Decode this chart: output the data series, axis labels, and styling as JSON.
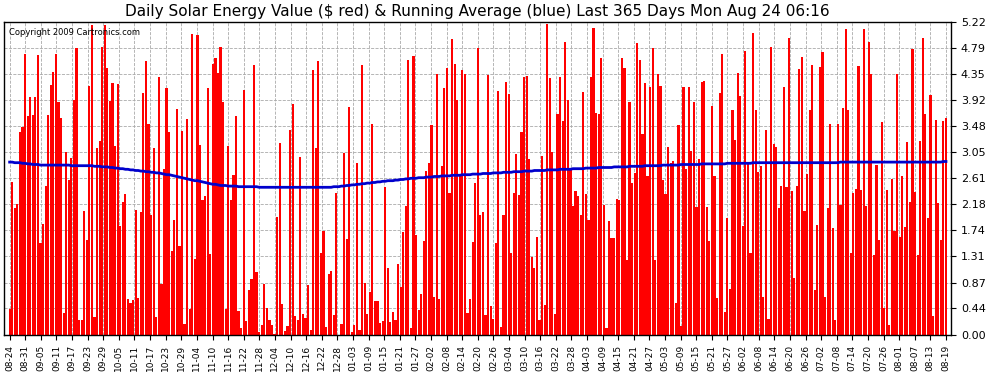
{
  "title": "Daily Solar Energy Value ($ red) & Running Average (blue) Last 365 Days Mon Aug 24 06:16",
  "copyright_text": "Copyright 2009 Cartronics.com",
  "yticks": [
    0.0,
    0.44,
    0.87,
    1.31,
    1.74,
    2.18,
    2.61,
    3.05,
    3.48,
    3.92,
    4.35,
    4.79,
    5.22
  ],
  "ymax": 5.22,
  "ymin": 0.0,
  "bar_color": "#ff0000",
  "avg_color": "#0000cc",
  "bg_color": "#ffffff",
  "grid_color": "#aaaaaa",
  "plot_bg": "#ffffff",
  "title_fontsize": 11,
  "xtick_labels": [
    "08-24",
    "08-31",
    "09-05",
    "09-11",
    "09-17",
    "09-23",
    "09-29",
    "10-05",
    "10-11",
    "10-17",
    "10-23",
    "10-29",
    "11-04",
    "11-10",
    "11-16",
    "11-22",
    "11-28",
    "12-04",
    "12-10",
    "12-16",
    "12-22",
    "12-28",
    "01-03",
    "01-09",
    "01-15",
    "01-21",
    "01-27",
    "02-02",
    "02-08",
    "02-14",
    "02-20",
    "02-26",
    "03-04",
    "03-10",
    "03-16",
    "03-22",
    "03-28",
    "04-03",
    "04-09",
    "04-15",
    "04-21",
    "04-27",
    "05-03",
    "05-09",
    "05-15",
    "05-21",
    "05-27",
    "06-02",
    "06-08",
    "06-14",
    "06-20",
    "06-26",
    "07-02",
    "07-08",
    "07-14",
    "07-20",
    "07-26",
    "08-01",
    "08-07",
    "08-13",
    "08-19"
  ],
  "running_avg_values": [
    2.88,
    2.88,
    2.87,
    2.87,
    2.87,
    2.86,
    2.86,
    2.85,
    2.85,
    2.84,
    2.84,
    2.84,
    2.83,
    2.83,
    2.83,
    2.83,
    2.83,
    2.83,
    2.83,
    2.83,
    2.83,
    2.83,
    2.83,
    2.83,
    2.82,
    2.82,
    2.82,
    2.82,
    2.82,
    2.82,
    2.82,
    2.82,
    2.82,
    2.81,
    2.81,
    2.81,
    2.8,
    2.8,
    2.8,
    2.79,
    2.79,
    2.78,
    2.78,
    2.77,
    2.77,
    2.76,
    2.76,
    2.75,
    2.75,
    2.74,
    2.74,
    2.73,
    2.73,
    2.72,
    2.72,
    2.71,
    2.71,
    2.7,
    2.7,
    2.69,
    2.68,
    2.67,
    2.67,
    2.66,
    2.65,
    2.64,
    2.63,
    2.62,
    2.61,
    2.6,
    2.59,
    2.58,
    2.57,
    2.57,
    2.56,
    2.55,
    2.54,
    2.53,
    2.52,
    2.51,
    2.51,
    2.5,
    2.49,
    2.49,
    2.49,
    2.48,
    2.48,
    2.48,
    2.48,
    2.47,
    2.47,
    2.47,
    2.47,
    2.47,
    2.47,
    2.47,
    2.47,
    2.46,
    2.46,
    2.46,
    2.46,
    2.46,
    2.46,
    2.46,
    2.46,
    2.46,
    2.46,
    2.46,
    2.46,
    2.46,
    2.46,
    2.46,
    2.46,
    2.46,
    2.46,
    2.46,
    2.46,
    2.46,
    2.46,
    2.46,
    2.46,
    2.46,
    2.46,
    2.46,
    2.46,
    2.46,
    2.47,
    2.47,
    2.47,
    2.48,
    2.48,
    2.49,
    2.49,
    2.5,
    2.5,
    2.51,
    2.51,
    2.52,
    2.52,
    2.53,
    2.53,
    2.54,
    2.54,
    2.55,
    2.55,
    2.56,
    2.56,
    2.57,
    2.57,
    2.57,
    2.58,
    2.58,
    2.59,
    2.59,
    2.6,
    2.6,
    2.61,
    2.61,
    2.61,
    2.62,
    2.62,
    2.62,
    2.63,
    2.63,
    2.63,
    2.64,
    2.64,
    2.64,
    2.65,
    2.65,
    2.65,
    2.65,
    2.66,
    2.66,
    2.66,
    2.66,
    2.67,
    2.67,
    2.67,
    2.67,
    2.68,
    2.68,
    2.68,
    2.68,
    2.69,
    2.69,
    2.69,
    2.69,
    2.7,
    2.7,
    2.7,
    2.7,
    2.71,
    2.71,
    2.71,
    2.71,
    2.72,
    2.72,
    2.72,
    2.72,
    2.73,
    2.73,
    2.73,
    2.73,
    2.74,
    2.74,
    2.74,
    2.74,
    2.74,
    2.75,
    2.75,
    2.75,
    2.75,
    2.75,
    2.76,
    2.76,
    2.76,
    2.76,
    2.76,
    2.77,
    2.77,
    2.77,
    2.77,
    2.77,
    2.78,
    2.78,
    2.78,
    2.78,
    2.78,
    2.79,
    2.79,
    2.79,
    2.79,
    2.79,
    2.79,
    2.8,
    2.8,
    2.8,
    2.8,
    2.8,
    2.8,
    2.81,
    2.81,
    2.81,
    2.81,
    2.81,
    2.81,
    2.82,
    2.82,
    2.82,
    2.82,
    2.82,
    2.82,
    2.82,
    2.83,
    2.83,
    2.83,
    2.83,
    2.83,
    2.83,
    2.83,
    2.84,
    2.84,
    2.84,
    2.84,
    2.84,
    2.84,
    2.84,
    2.84,
    2.85,
    2.85,
    2.85,
    2.85,
    2.85,
    2.85,
    2.85,
    2.85,
    2.85,
    2.85,
    2.86,
    2.86,
    2.86,
    2.86,
    2.86,
    2.86,
    2.86,
    2.86,
    2.86,
    2.86,
    2.87,
    2.87,
    2.87,
    2.87,
    2.87,
    2.87,
    2.87,
    2.87,
    2.87,
    2.87,
    2.87,
    2.87,
    2.87,
    2.87,
    2.87,
    2.87,
    2.87,
    2.87,
    2.87,
    2.87,
    2.87,
    2.87,
    2.87,
    2.87,
    2.87,
    2.87,
    2.87,
    2.87,
    2.87,
    2.87,
    2.87,
    2.87,
    2.87,
    2.87,
    2.88,
    2.88,
    2.88,
    2.88,
    2.88,
    2.88,
    2.88,
    2.88,
    2.88,
    2.88,
    2.88,
    2.88,
    2.88,
    2.88,
    2.88,
    2.88,
    2.88,
    2.88,
    2.88,
    2.88,
    2.88,
    2.88,
    2.88,
    2.88,
    2.88,
    2.88,
    2.88,
    2.88,
    2.88,
    2.88,
    2.88,
    2.88,
    2.88,
    2.88,
    2.88,
    2.88,
    2.88,
    2.88,
    2.88,
    2.88,
    2.89,
    2.89
  ]
}
